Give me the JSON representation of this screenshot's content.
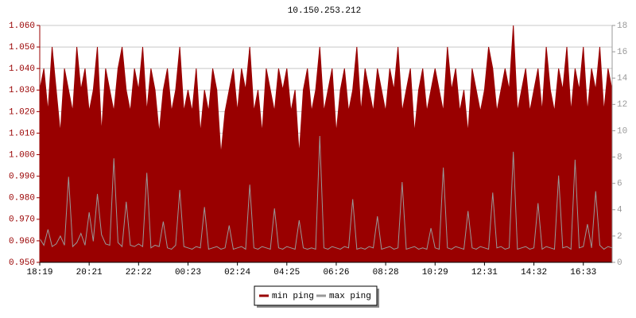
{
  "chart_data": {
    "type": "line",
    "title": "10.150.253.212",
    "categories": [
      "18:19",
      null,
      null,
      null,
      null,
      null,
      null,
      null,
      null,
      null,
      null,
      null,
      "20:21",
      null,
      null,
      null,
      null,
      null,
      null,
      null,
      null,
      null,
      null,
      null,
      "22:22",
      null,
      null,
      null,
      null,
      null,
      null,
      null,
      null,
      null,
      null,
      null,
      "00:23",
      null,
      null,
      null,
      null,
      null,
      null,
      null,
      null,
      null,
      null,
      null,
      "02:24",
      null,
      null,
      null,
      null,
      null,
      null,
      null,
      null,
      null,
      null,
      null,
      "04:25",
      null,
      null,
      null,
      null,
      null,
      null,
      null,
      null,
      null,
      null,
      null,
      "06:26",
      null,
      null,
      null,
      null,
      null,
      null,
      null,
      null,
      null,
      null,
      null,
      "08:28",
      null,
      null,
      null,
      null,
      null,
      null,
      null,
      null,
      null,
      null,
      null,
      "10:29",
      null,
      null,
      null,
      null,
      null,
      null,
      null,
      null,
      null,
      null,
      null,
      "12:31",
      null,
      null,
      null,
      null,
      null,
      null,
      null,
      null,
      null,
      null,
      null,
      "14:32",
      null,
      null,
      null,
      null,
      null,
      null,
      null,
      null,
      null,
      null,
      null,
      "16:33",
      null,
      null,
      null,
      null,
      null,
      null,
      null
    ],
    "series": [
      {
        "name": "min ping",
        "color": "#990000",
        "fill": true,
        "values": [
          1.03,
          1.04,
          1.02,
          1.05,
          1.03,
          1.01,
          1.04,
          1.03,
          1.02,
          1.05,
          1.03,
          1.04,
          1.02,
          1.03,
          1.05,
          1.01,
          1.04,
          1.03,
          1.02,
          1.04,
          1.05,
          1.03,
          1.02,
          1.04,
          1.03,
          1.05,
          1.02,
          1.04,
          1.03,
          1.01,
          1.03,
          1.04,
          1.02,
          1.03,
          1.05,
          1.02,
          1.03,
          1.02,
          1.04,
          1.01,
          1.03,
          1.02,
          1.04,
          1.03,
          1.0,
          1.02,
          1.03,
          1.04,
          1.02,
          1.04,
          1.03,
          1.05,
          1.02,
          1.03,
          1.01,
          1.04,
          1.03,
          1.02,
          1.04,
          1.03,
          1.04,
          1.02,
          1.03,
          1.0,
          1.03,
          1.04,
          1.02,
          1.03,
          1.05,
          1.02,
          1.03,
          1.04,
          1.01,
          1.03,
          1.04,
          1.02,
          1.03,
          1.05,
          1.02,
          1.04,
          1.03,
          1.02,
          1.04,
          1.03,
          1.02,
          1.04,
          1.03,
          1.05,
          1.02,
          1.03,
          1.04,
          1.01,
          1.03,
          1.04,
          1.02,
          1.03,
          1.04,
          1.03,
          1.02,
          1.05,
          1.03,
          1.04,
          1.02,
          1.03,
          1.01,
          1.04,
          1.03,
          1.02,
          1.03,
          1.05,
          1.04,
          1.02,
          1.03,
          1.04,
          1.03,
          1.06,
          1.02,
          1.03,
          1.04,
          1.02,
          1.03,
          1.04,
          1.02,
          1.05,
          1.03,
          1.02,
          1.04,
          1.03,
          1.05,
          1.02,
          1.04,
          1.03,
          1.05,
          1.02,
          1.04,
          1.03,
          1.05,
          1.02,
          1.04,
          1.03
        ]
      },
      {
        "name": "max ping",
        "color": "#999999",
        "fill": false,
        "axis": "y2",
        "values": [
          1.8,
          1.3,
          2.5,
          1.2,
          1.4,
          2.0,
          1.3,
          6.5,
          1.2,
          1.5,
          2.2,
          1.3,
          3.8,
          1.6,
          5.2,
          2.1,
          1.4,
          1.3,
          7.9,
          1.5,
          1.2,
          4.6,
          1.3,
          1.2,
          1.4,
          1.2,
          6.8,
          1.1,
          1.3,
          1.2,
          3.1,
          1.1,
          1.0,
          1.3,
          5.5,
          1.2,
          1.1,
          1.0,
          1.2,
          1.1,
          4.2,
          1.0,
          1.1,
          1.2,
          1.0,
          1.1,
          2.8,
          1.0,
          1.1,
          1.2,
          1.0,
          5.9,
          1.1,
          1.0,
          1.2,
          1.1,
          1.0,
          4.1,
          1.1,
          1.0,
          1.2,
          1.1,
          1.0,
          3.2,
          1.1,
          1.0,
          1.1,
          1.0,
          9.6,
          1.1,
          1.0,
          1.2,
          1.1,
          1.0,
          1.2,
          1.1,
          4.8,
          1.0,
          1.1,
          1.0,
          1.2,
          1.1,
          3.5,
          1.0,
          1.1,
          1.2,
          1.0,
          1.1,
          6.1,
          1.0,
          1.1,
          1.2,
          1.0,
          1.1,
          1.0,
          2.6,
          1.1,
          1.0,
          7.2,
          1.1,
          1.0,
          1.2,
          1.1,
          1.0,
          3.9,
          1.1,
          1.0,
          1.2,
          1.1,
          1.0,
          5.3,
          1.1,
          1.2,
          1.0,
          1.1,
          8.4,
          1.0,
          1.1,
          1.2,
          1.0,
          1.1,
          4.5,
          1.0,
          1.2,
          1.1,
          1.0,
          6.6,
          1.1,
          1.2,
          1.0,
          7.8,
          1.1,
          1.2,
          2.9,
          1.1,
          5.4,
          1.3,
          1.0,
          1.2,
          1.1
        ]
      }
    ],
    "ylim": [
      0.95,
      1.06
    ],
    "yticks": [
      {
        "value": 0.95,
        "label": "0.950"
      },
      {
        "value": 0.96,
        "label": "0.960"
      },
      {
        "value": 0.97,
        "label": "0.970"
      },
      {
        "value": 0.98,
        "label": "0.980"
      },
      {
        "value": 0.99,
        "label": "0.990"
      },
      {
        "value": 1.0,
        "label": "1.000"
      },
      {
        "value": 1.01,
        "label": "1.010"
      },
      {
        "value": 1.02,
        "label": "1.020"
      },
      {
        "value": 1.03,
        "label": "1.030"
      },
      {
        "value": 1.04,
        "label": "1.040"
      },
      {
        "value": 1.05,
        "label": "1.050"
      },
      {
        "value": 1.06,
        "label": "1.060"
      }
    ],
    "y2lim": [
      0,
      18
    ],
    "y2ticks": [
      0,
      2,
      4,
      6,
      8,
      10,
      12,
      14,
      16,
      18
    ],
    "grid": true,
    "legend": "bottom"
  }
}
